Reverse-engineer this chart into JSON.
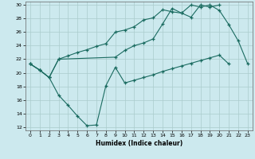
{
  "xlabel": "Humidex (Indice chaleur)",
  "background_color": "#cce9ee",
  "grid_color": "#aacccc",
  "line_color": "#1a6b60",
  "xlim": [
    -0.5,
    23.5
  ],
  "ylim": [
    11.5,
    30.5
  ],
  "xticks": [
    0,
    1,
    2,
    3,
    4,
    5,
    6,
    7,
    8,
    9,
    10,
    11,
    12,
    13,
    14,
    15,
    16,
    17,
    18,
    19,
    20,
    21,
    22,
    23
  ],
  "yticks": [
    12,
    14,
    16,
    18,
    20,
    22,
    24,
    26,
    28,
    30
  ],
  "line1_x": [
    0,
    1,
    2,
    3,
    4,
    5,
    6,
    7,
    8,
    9,
    10,
    11,
    12,
    13,
    14,
    15,
    16,
    17,
    18,
    19,
    20,
    21,
    22,
    23
  ],
  "line1_y": [
    21.3,
    20.4,
    19.3,
    16.7,
    15.2,
    13.6,
    12.2,
    12.3,
    18.1,
    20.8,
    18.5,
    18.9,
    19.3,
    19.7,
    20.2,
    20.6,
    21.0,
    21.4,
    21.8,
    22.2,
    22.6,
    21.3,
    null,
    null
  ],
  "line2_x": [
    0,
    1,
    2,
    3,
    4,
    5,
    6,
    7,
    8,
    9,
    10,
    11,
    12,
    13,
    14,
    15,
    16,
    17,
    18,
    19,
    20,
    21,
    22,
    23
  ],
  "line2_y": [
    21.3,
    20.4,
    19.3,
    22.0,
    22.5,
    23.0,
    23.4,
    23.9,
    24.3,
    26.0,
    26.3,
    26.8,
    27.8,
    28.1,
    29.3,
    29.0,
    28.8,
    30.0,
    29.7,
    30.0,
    29.2,
    27.1,
    24.7,
    21.3
  ],
  "line3_x": [
    0,
    1,
    2,
    3,
    9,
    10,
    11,
    12,
    13,
    14,
    15,
    16,
    17,
    18,
    19,
    20
  ],
  "line3_y": [
    21.3,
    20.4,
    19.3,
    22.0,
    22.3,
    23.3,
    24.0,
    24.4,
    25.0,
    27.2,
    29.5,
    28.8,
    28.2,
    30.0,
    29.7,
    30.0
  ]
}
